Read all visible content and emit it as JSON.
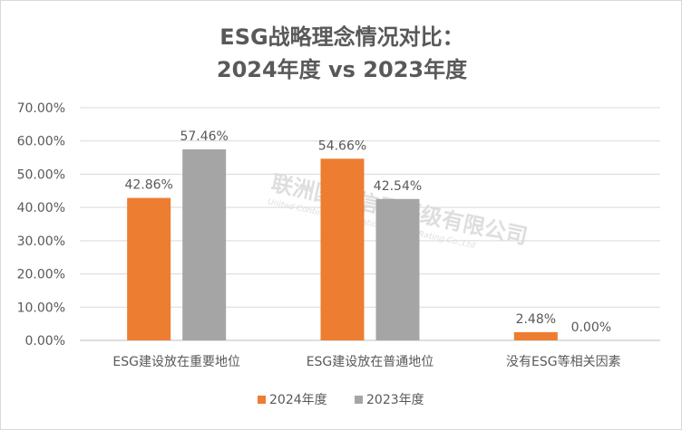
{
  "chart_data": {
    "type": "bar",
    "title_line1": "ESG战略理念情况对比：",
    "title_line2": "2024年度 vs 2023年度",
    "categories": [
      "ESG建设放在重要地位",
      "ESG建设放在普通地位",
      "没有ESG等相关因素"
    ],
    "series": [
      {
        "name": "2024年度",
        "values": [
          42.86,
          54.66,
          2.48
        ],
        "labels": [
          "42.86%",
          "54.66%",
          "2.48%"
        ],
        "color": "#ED7D31"
      },
      {
        "name": "2023年度",
        "values": [
          57.46,
          42.54,
          0.0
        ],
        "labels": [
          "57.46%",
          "42.54%",
          "0.00%"
        ],
        "color": "#A5A5A5"
      }
    ],
    "ylim": [
      0,
      70
    ],
    "yticks": [
      "0.00%",
      "10.00%",
      "20.00%",
      "30.00%",
      "40.00%",
      "50.00%",
      "60.00%",
      "70.00%"
    ],
    "grid": true,
    "legend_position": "bottom",
    "xlabel": "",
    "ylabel": ""
  },
  "watermark": {
    "text_cn": "联洲国际信用评级有限公司",
    "text_en": "United Continent International Credit Rating Co.,Ltd"
  }
}
